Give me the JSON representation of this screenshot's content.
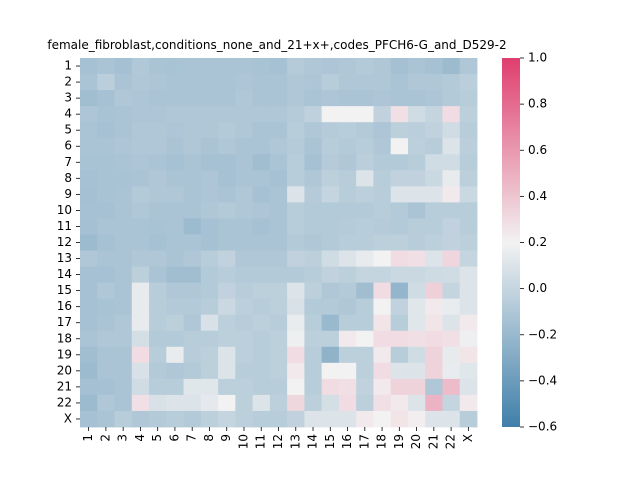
{
  "chart_data": {
    "type": "heatmap",
    "title": "female_fibroblast,conditions_none_and_21+x+,codes_PFCH6-G_and_D529-2",
    "xlabel": "",
    "ylabel": "",
    "x_categories": [
      "1",
      "2",
      "3",
      "4",
      "5",
      "6",
      "7",
      "8",
      "9",
      "10",
      "11",
      "12",
      "13",
      "14",
      "15",
      "16",
      "17",
      "18",
      "19",
      "20",
      "21",
      "22",
      "X"
    ],
    "y_categories": [
      "1",
      "2",
      "3",
      "4",
      "5",
      "6",
      "7",
      "8",
      "9",
      "10",
      "11",
      "12",
      "13",
      "14",
      "15",
      "16",
      "17",
      "18",
      "19",
      "20",
      "21",
      "22",
      "X"
    ],
    "colorbar": {
      "vmin": -0.6,
      "vmax": 1.0,
      "ticks": [
        -0.6,
        -0.4,
        -0.2,
        0.0,
        0.2,
        0.4,
        0.6,
        0.8,
        1.0
      ],
      "tick_labels": [
        "−0.6",
        "−0.4",
        "−0.2",
        "0.0",
        "0.2",
        "0.4",
        "0.6",
        "0.8",
        "1.0"
      ],
      "colors": {
        "low": "#3f7fa9",
        "mid": "#f2f2f2",
        "high": "#df3e6e"
      }
    },
    "values": [
      [
        -0.14,
        -0.12,
        -0.15,
        -0.09,
        -0.12,
        -0.13,
        -0.12,
        -0.12,
        -0.12,
        -0.12,
        -0.13,
        -0.14,
        -0.07,
        -0.1,
        -0.11,
        -0.1,
        -0.08,
        -0.1,
        -0.15,
        -0.12,
        -0.14,
        -0.18,
        -0.1
      ],
      [
        -0.12,
        -0.05,
        -0.12,
        -0.1,
        -0.11,
        -0.12,
        -0.12,
        -0.12,
        -0.12,
        -0.11,
        -0.12,
        -0.12,
        -0.1,
        -0.11,
        -0.06,
        -0.1,
        -0.1,
        -0.1,
        -0.12,
        -0.1,
        -0.1,
        -0.08,
        -0.05
      ],
      [
        -0.16,
        -0.14,
        -0.1,
        -0.11,
        -0.12,
        -0.12,
        -0.12,
        -0.12,
        -0.12,
        -0.1,
        -0.12,
        -0.12,
        -0.1,
        -0.12,
        -0.11,
        -0.12,
        -0.12,
        -0.11,
        -0.12,
        -0.12,
        -0.11,
        -0.08,
        -0.06
      ],
      [
        -0.11,
        -0.13,
        -0.12,
        -0.11,
        -0.11,
        -0.1,
        -0.1,
        -0.1,
        -0.1,
        -0.1,
        -0.1,
        -0.1,
        -0.07,
        -0.03,
        0.2,
        0.2,
        0.2,
        -0.02,
        0.28,
        0.05,
        0.0,
        0.3,
        -0.04
      ],
      [
        -0.12,
        -0.14,
        -0.12,
        -0.1,
        -0.1,
        -0.11,
        -0.1,
        -0.1,
        -0.08,
        -0.1,
        -0.12,
        -0.12,
        -0.06,
        -0.1,
        -0.07,
        -0.06,
        -0.08,
        -0.11,
        -0.04,
        -0.05,
        -0.02,
        0.05,
        -0.06
      ],
      [
        -0.12,
        -0.12,
        -0.11,
        -0.1,
        -0.1,
        -0.12,
        -0.1,
        -0.12,
        -0.1,
        -0.12,
        -0.12,
        -0.1,
        -0.07,
        -0.12,
        -0.06,
        -0.08,
        -0.06,
        -0.1,
        0.2,
        -0.04,
        -0.06,
        0.1,
        -0.05
      ],
      [
        -0.13,
        -0.13,
        -0.12,
        -0.11,
        -0.12,
        -0.14,
        -0.12,
        -0.14,
        -0.14,
        -0.12,
        -0.16,
        -0.12,
        -0.06,
        -0.14,
        -0.07,
        -0.1,
        -0.05,
        -0.08,
        -0.08,
        -0.06,
        0.05,
        0.05,
        -0.06
      ],
      [
        -0.14,
        -0.13,
        -0.13,
        -0.12,
        -0.1,
        -0.12,
        -0.12,
        -0.11,
        -0.14,
        -0.12,
        -0.12,
        -0.14,
        -0.06,
        -0.1,
        -0.04,
        -0.06,
        0.1,
        -0.06,
        -0.02,
        -0.02,
        0.02,
        0.15,
        -0.04
      ],
      [
        -0.15,
        -0.13,
        -0.12,
        -0.08,
        -0.1,
        -0.1,
        -0.12,
        -0.11,
        -0.12,
        -0.1,
        -0.14,
        -0.12,
        0.1,
        -0.07,
        0.0,
        -0.06,
        -0.04,
        -0.06,
        0.1,
        0.1,
        0.1,
        0.24,
        0.02
      ],
      [
        -0.14,
        -0.14,
        -0.12,
        -0.1,
        -0.12,
        -0.12,
        -0.12,
        -0.1,
        -0.08,
        -0.1,
        -0.11,
        -0.12,
        -0.06,
        -0.08,
        -0.08,
        -0.08,
        -0.08,
        -0.06,
        -0.08,
        -0.12,
        -0.06,
        -0.06,
        -0.06
      ],
      [
        -0.15,
        -0.12,
        -0.12,
        -0.12,
        -0.13,
        -0.12,
        -0.18,
        -0.14,
        -0.12,
        -0.12,
        -0.14,
        -0.12,
        -0.06,
        -0.08,
        -0.08,
        -0.07,
        -0.06,
        -0.07,
        -0.08,
        -0.06,
        -0.06,
        -0.02,
        -0.06
      ],
      [
        -0.18,
        -0.14,
        -0.12,
        -0.12,
        -0.14,
        -0.12,
        -0.12,
        -0.14,
        -0.12,
        -0.12,
        -0.12,
        -0.12,
        -0.08,
        -0.1,
        -0.08,
        -0.06,
        -0.06,
        -0.04,
        -0.04,
        -0.06,
        -0.04,
        -0.02,
        -0.04
      ],
      [
        -0.1,
        -0.12,
        -0.12,
        -0.1,
        -0.1,
        -0.12,
        -0.1,
        -0.06,
        -0.02,
        -0.1,
        -0.1,
        -0.1,
        -0.02,
        -0.04,
        0.05,
        0.1,
        0.15,
        0.2,
        0.3,
        0.28,
        0.1,
        0.33,
        0.0
      ],
      [
        -0.14,
        -0.14,
        -0.12,
        -0.04,
        -0.12,
        -0.16,
        -0.16,
        -0.08,
        -0.06,
        -0.08,
        -0.08,
        -0.08,
        -0.08,
        -0.06,
        -0.02,
        -0.04,
        0.0,
        0.0,
        0.02,
        0.02,
        0.04,
        0.05,
        0.1
      ],
      [
        -0.14,
        -0.1,
        -0.12,
        0.15,
        -0.06,
        -0.1,
        -0.1,
        -0.08,
        -0.02,
        -0.06,
        -0.04,
        -0.04,
        0.1,
        -0.04,
        -0.1,
        -0.08,
        -0.16,
        0.3,
        -0.22,
        0.05,
        0.35,
        0.0,
        0.1
      ],
      [
        -0.14,
        -0.13,
        -0.12,
        0.15,
        -0.06,
        -0.08,
        -0.08,
        -0.06,
        0.02,
        -0.04,
        -0.06,
        -0.04,
        0.08,
        -0.08,
        -0.08,
        -0.1,
        -0.06,
        0.2,
        -0.02,
        0.12,
        0.24,
        0.16,
        0.1
      ],
      [
        -0.14,
        -0.12,
        -0.1,
        0.15,
        -0.06,
        -0.04,
        -0.1,
        0.08,
        -0.04,
        -0.06,
        -0.04,
        -0.06,
        0.16,
        -0.06,
        -0.2,
        -0.06,
        -0.06,
        0.26,
        -0.06,
        0.12,
        0.26,
        0.1,
        0.24
      ],
      [
        -0.12,
        -0.1,
        -0.1,
        0.06,
        -0.08,
        -0.08,
        -0.06,
        -0.06,
        -0.04,
        -0.04,
        -0.06,
        -0.04,
        0.18,
        -0.04,
        -0.04,
        0.24,
        0.2,
        0.3,
        0.3,
        0.28,
        0.3,
        0.28,
        0.18
      ],
      [
        -0.16,
        -0.12,
        -0.12,
        0.3,
        -0.06,
        0.16,
        -0.06,
        -0.04,
        0.1,
        -0.04,
        -0.06,
        -0.04,
        0.3,
        -0.06,
        -0.24,
        -0.04,
        -0.04,
        0.24,
        -0.06,
        0.05,
        0.34,
        0.15,
        0.26
      ],
      [
        -0.18,
        -0.12,
        -0.12,
        0.08,
        -0.08,
        -0.1,
        -0.08,
        -0.04,
        0.1,
        -0.06,
        -0.06,
        -0.04,
        0.24,
        -0.06,
        0.2,
        0.2,
        -0.04,
        0.3,
        0.1,
        0.1,
        0.34,
        0.16,
        0.12
      ],
      [
        -0.15,
        -0.14,
        -0.12,
        0.05,
        -0.06,
        -0.06,
        0.12,
        0.12,
        -0.04,
        -0.04,
        -0.06,
        -0.06,
        0.2,
        -0.06,
        0.3,
        0.28,
        -0.02,
        0.24,
        0.34,
        0.34,
        -0.1,
        0.44,
        0.1
      ],
      [
        -0.18,
        -0.1,
        -0.12,
        0.28,
        0.08,
        0.1,
        0.1,
        0.14,
        0.2,
        -0.04,
        0.1,
        -0.04,
        0.32,
        -0.04,
        0.06,
        0.3,
        -0.04,
        0.28,
        0.24,
        0.1,
        0.48,
        0.0,
        0.24
      ],
      [
        -0.14,
        -0.12,
        -0.06,
        -0.1,
        -0.08,
        -0.06,
        -0.08,
        -0.04,
        0.0,
        -0.04,
        -0.06,
        -0.06,
        -0.02,
        0.1,
        0.1,
        0.1,
        0.24,
        0.2,
        0.26,
        0.22,
        0.1,
        0.1,
        -0.06
      ]
    ]
  }
}
